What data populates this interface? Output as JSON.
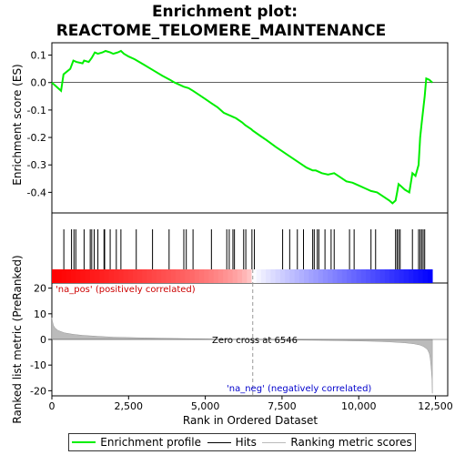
{
  "chart_data": {
    "type": "line",
    "title_lines": [
      "Enrichment plot:",
      "REACTOME_TELOMERE_MAINTENANCE"
    ],
    "panels": {
      "enrichment": {
        "ylabel": "Enrichment score (ES)",
        "ylim": [
          -0.475,
          0.145
        ],
        "yticks": [
          0.1,
          0.0,
          -0.1,
          -0.2,
          -0.3,
          -0.4
        ],
        "ytick_labels": [
          "0.1",
          "0.0",
          "-0.1",
          "-0.2",
          "-0.3",
          "-0.4"
        ],
        "series": [
          {
            "color": "#00ee00",
            "x": [
              0,
              300,
              380,
              600,
              700,
              800,
              1000,
              1050,
              1200,
              1300,
              1400,
              1500,
              1650,
              1750,
              1900,
              2000,
              2150,
              2250,
              2350,
              2500,
              2700,
              2850,
              3000,
              3300,
              3600,
              3850,
              4000,
              4300,
              4450,
              4600,
              4800,
              5000,
              5200,
              5400,
              5600,
              5700,
              5800,
              5900,
              6000,
              6200,
              6300,
              6500,
              6546,
              6800,
              7000,
              7300,
              7500,
              7700,
              7900,
              8100,
              8300,
              8500,
              8600,
              8700,
              8800,
              9000,
              9200,
              9400,
              9600,
              9800,
              10000,
              10200,
              10400,
              10600,
              10800,
              11000,
              11100,
              11200,
              11250,
              11300,
              11400,
              11500,
              11650,
              11750,
              11850,
              11950,
              12000,
              12050,
              12100,
              12150,
              12200,
              12300,
              12400
            ],
            "y": [
              0.0,
              -0.03,
              0.03,
              0.05,
              0.08,
              0.075,
              0.07,
              0.08,
              0.075,
              0.09,
              0.11,
              0.105,
              0.11,
              0.115,
              0.11,
              0.105,
              0.11,
              0.115,
              0.105,
              0.095,
              0.085,
              0.075,
              0.065,
              0.045,
              0.025,
              0.01,
              0.0,
              -0.015,
              -0.02,
              -0.03,
              -0.045,
              -0.06,
              -0.075,
              -0.09,
              -0.11,
              -0.115,
              -0.12,
              -0.125,
              -0.13,
              -0.145,
              -0.155,
              -0.17,
              -0.175,
              -0.195,
              -0.21,
              -0.235,
              -0.25,
              -0.265,
              -0.28,
              -0.295,
              -0.31,
              -0.32,
              -0.32,
              -0.325,
              -0.33,
              -0.335,
              -0.33,
              -0.345,
              -0.36,
              -0.365,
              -0.375,
              -0.385,
              -0.395,
              -0.4,
              -0.415,
              -0.43,
              -0.44,
              -0.43,
              -0.4,
              -0.37,
              -0.38,
              -0.39,
              -0.4,
              -0.33,
              -0.34,
              -0.3,
              -0.2,
              -0.15,
              -0.1,
              -0.05,
              0.015,
              0.01,
              0.0
            ]
          }
        ]
      },
      "hits": {
        "positions": [
          390,
          640,
          720,
          780,
          1050,
          1250,
          1300,
          1380,
          1500,
          1700,
          1720,
          1900,
          2100,
          2250,
          2750,
          3280,
          3820,
          4300,
          4380,
          4600,
          5200,
          5700,
          5780,
          5900,
          5950,
          6250,
          6320,
          6520,
          6600,
          7520,
          7750,
          8000,
          8200,
          8500,
          8550,
          8650,
          8700,
          8900,
          9100,
          9200,
          9700,
          9850,
          10400,
          10550,
          11200,
          11250,
          11300,
          11350,
          11750,
          11950,
          12000,
          12050,
          12100,
          12150
        ]
      },
      "ranked": {
        "ylabel": "Ranked list metric (PreRanked)",
        "ylim": [
          -22,
          22
        ],
        "yticks": [
          20,
          10,
          0,
          -10,
          -20
        ],
        "ytick_labels": [
          "20",
          "10",
          "0",
          "-10",
          "-20"
        ],
        "x": [
          0,
          20,
          50,
          100,
          200,
          400,
          700,
          1000,
          1500,
          2000,
          3000,
          4000,
          5000,
          6000,
          6546,
          7000,
          8000,
          9000,
          10000,
          10500,
          11000,
          11500,
          11800,
          12000,
          12100,
          12200,
          12250,
          12300,
          12330,
          12360,
          12390,
          12400
        ],
        "values": [
          8.5,
          7.0,
          5.5,
          4.5,
          3.5,
          2.6,
          2.0,
          1.6,
          1.2,
          0.9,
          0.6,
          0.4,
          0.2,
          0.08,
          0.0,
          -0.1,
          -0.25,
          -0.4,
          -0.6,
          -0.75,
          -0.95,
          -1.3,
          -1.7,
          -2.2,
          -2.7,
          -3.5,
          -4.2,
          -5.5,
          -7.5,
          -11.0,
          -16.0,
          -21.0
        ],
        "zero_cross_label": "Zero cross at 6546",
        "pos_label": "'na_pos' (positively correlated)",
        "neg_label": "'na_neg' (negatively correlated)"
      }
    },
    "xlabel": "Rank in Ordered Dataset",
    "xlim": [
      0,
      12900
    ],
    "xticks": [
      0,
      2500,
      5000,
      7500,
      10000,
      12500
    ],
    "xtick_labels": [
      "0",
      "2,500",
      "5,000",
      "7,500",
      "10,000",
      "12,500"
    ],
    "n_genes": 12400,
    "zero_cross": 6546,
    "colors": {
      "es_line": "#00ee00",
      "hits": "#000000",
      "metric_fill": "#bbbbbb",
      "positive": "#ff0000",
      "negative": "#0000ff",
      "zero_line": "#999999"
    },
    "legend": {
      "placement": "bottom",
      "items": [
        {
          "label": "Enrichment profile",
          "swatch": "green"
        },
        {
          "label": "Hits",
          "swatch": "black"
        },
        {
          "label": "Ranking metric scores",
          "swatch": "gray"
        }
      ]
    }
  }
}
